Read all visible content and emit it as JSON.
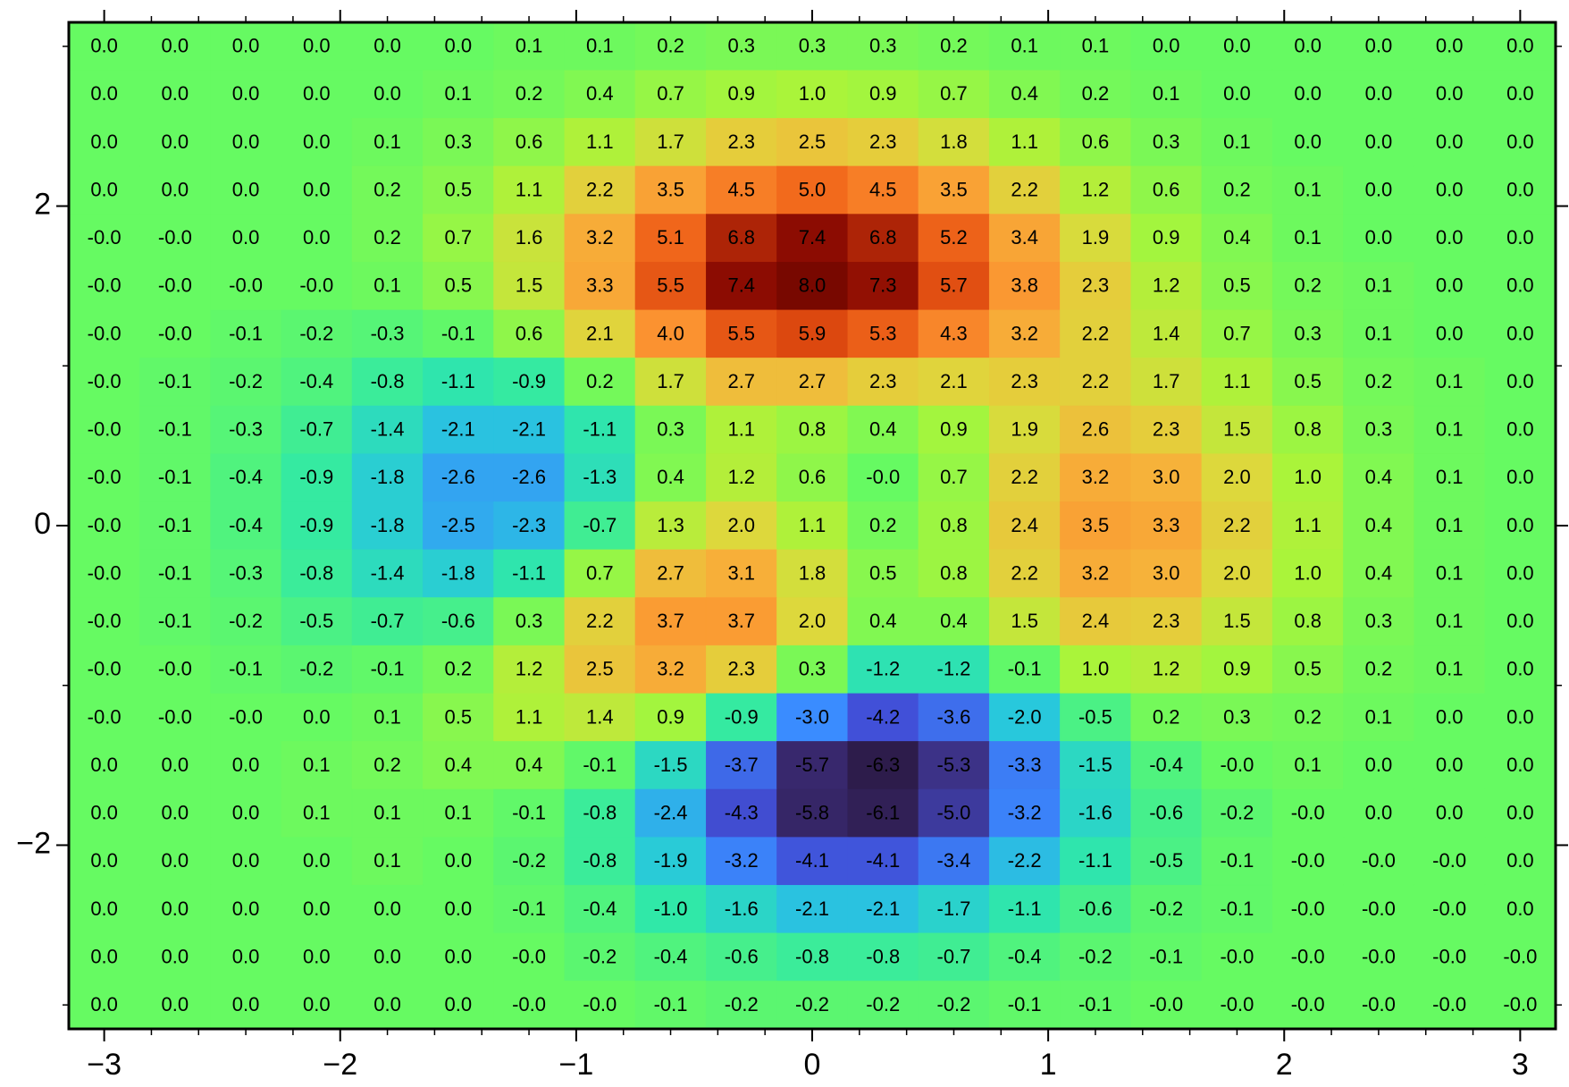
{
  "chart_data": {
    "type": "heatmap",
    "x": [
      -3.0,
      -2.7,
      -2.4,
      -2.1,
      -1.8,
      -1.5,
      -1.2,
      -0.9,
      -0.6,
      -0.3,
      0.0,
      0.3,
      0.6,
      0.9,
      1.2,
      1.5,
      1.8,
      2.1,
      2.4,
      2.7,
      3.0
    ],
    "y": [
      3.0,
      2.7,
      2.4,
      2.1,
      1.8,
      1.5,
      1.2,
      0.9,
      0.6,
      0.3,
      0.0,
      -0.3,
      -0.6,
      -0.9,
      -1.2,
      -1.5,
      -1.8,
      -2.1,
      -2.4,
      -2.7,
      -3.0
    ],
    "values": [
      [
        0.0,
        0.0,
        0.0,
        0.0,
        0.0,
        0.0,
        0.1,
        0.1,
        0.2,
        0.3,
        0.3,
        0.3,
        0.2,
        0.1,
        0.1,
        0.0,
        0.0,
        0.0,
        0.0,
        0.0,
        0.0
      ],
      [
        0.0,
        0.0,
        0.0,
        0.0,
        0.0,
        0.1,
        0.2,
        0.4,
        0.7,
        0.9,
        1.0,
        0.9,
        0.7,
        0.4,
        0.2,
        0.1,
        0.0,
        0.0,
        0.0,
        0.0,
        0.0
      ],
      [
        0.0,
        0.0,
        0.0,
        0.0,
        0.1,
        0.3,
        0.6,
        1.1,
        1.7,
        2.3,
        2.5,
        2.3,
        1.8,
        1.1,
        0.6,
        0.3,
        0.1,
        0.0,
        0.0,
        0.0,
        0.0
      ],
      [
        0.0,
        0.0,
        0.0,
        0.0,
        0.2,
        0.5,
        1.1,
        2.2,
        3.5,
        4.5,
        5.0,
        4.5,
        3.5,
        2.2,
        1.2,
        0.6,
        0.2,
        0.1,
        0.0,
        0.0,
        0.0
      ],
      [
        -0.0,
        -0.0,
        0.0,
        0.0,
        0.2,
        0.7,
        1.6,
        3.2,
        5.1,
        6.8,
        7.4,
        6.8,
        5.2,
        3.4,
        1.9,
        0.9,
        0.4,
        0.1,
        0.0,
        0.0,
        0.0
      ],
      [
        -0.0,
        -0.0,
        -0.0,
        -0.0,
        0.1,
        0.5,
        1.5,
        3.3,
        5.5,
        7.4,
        8.0,
        7.3,
        5.7,
        3.8,
        2.3,
        1.2,
        0.5,
        0.2,
        0.1,
        0.0,
        0.0
      ],
      [
        -0.0,
        -0.0,
        -0.1,
        -0.2,
        -0.3,
        -0.1,
        0.6,
        2.1,
        4.0,
        5.5,
        5.9,
        5.3,
        4.3,
        3.2,
        2.2,
        1.4,
        0.7,
        0.3,
        0.1,
        0.0,
        0.0
      ],
      [
        -0.0,
        -0.1,
        -0.2,
        -0.4,
        -0.8,
        -1.1,
        -0.9,
        0.2,
        1.7,
        2.7,
        2.7,
        2.3,
        2.1,
        2.3,
        2.2,
        1.7,
        1.1,
        0.5,
        0.2,
        0.1,
        0.0
      ],
      [
        -0.0,
        -0.1,
        -0.3,
        -0.7,
        -1.4,
        -2.1,
        -2.1,
        -1.1,
        0.3,
        1.1,
        0.8,
        0.4,
        0.9,
        1.9,
        2.6,
        2.3,
        1.5,
        0.8,
        0.3,
        0.1,
        0.0
      ],
      [
        -0.0,
        -0.1,
        -0.4,
        -0.9,
        -1.8,
        -2.6,
        -2.6,
        -1.3,
        0.4,
        1.2,
        0.6,
        -0.0,
        0.7,
        2.2,
        3.2,
        3.0,
        2.0,
        1.0,
        0.4,
        0.1,
        0.0
      ],
      [
        -0.0,
        -0.1,
        -0.4,
        -0.9,
        -1.8,
        -2.5,
        -2.3,
        -0.7,
        1.3,
        2.0,
        1.1,
        0.2,
        0.8,
        2.4,
        3.5,
        3.3,
        2.2,
        1.1,
        0.4,
        0.1,
        0.0
      ],
      [
        -0.0,
        -0.1,
        -0.3,
        -0.8,
        -1.4,
        -1.8,
        -1.1,
        0.7,
        2.7,
        3.1,
        1.8,
        0.5,
        0.8,
        2.2,
        3.2,
        3.0,
        2.0,
        1.0,
        0.4,
        0.1,
        0.0
      ],
      [
        -0.0,
        -0.1,
        -0.2,
        -0.5,
        -0.7,
        -0.6,
        0.3,
        2.2,
        3.7,
        3.7,
        2.0,
        0.4,
        0.4,
        1.5,
        2.4,
        2.3,
        1.5,
        0.8,
        0.3,
        0.1,
        0.0
      ],
      [
        -0.0,
        -0.0,
        -0.1,
        -0.2,
        -0.1,
        0.2,
        1.2,
        2.5,
        3.2,
        2.3,
        0.3,
        -1.2,
        -1.2,
        -0.1,
        1.0,
        1.2,
        0.9,
        0.5,
        0.2,
        0.1,
        0.0
      ],
      [
        -0.0,
        -0.0,
        -0.0,
        0.0,
        0.1,
        0.5,
        1.1,
        1.4,
        0.9,
        -0.9,
        -3.0,
        -4.2,
        -3.6,
        -2.0,
        -0.5,
        0.2,
        0.3,
        0.2,
        0.1,
        0.0,
        0.0
      ],
      [
        0.0,
        0.0,
        0.0,
        0.1,
        0.2,
        0.4,
        0.4,
        -0.1,
        -1.5,
        -3.7,
        -5.7,
        -6.3,
        -5.3,
        -3.3,
        -1.5,
        -0.4,
        -0.0,
        0.1,
        0.0,
        0.0,
        0.0
      ],
      [
        0.0,
        0.0,
        0.0,
        0.1,
        0.1,
        0.1,
        -0.1,
        -0.8,
        -2.4,
        -4.3,
        -5.8,
        -6.1,
        -5.0,
        -3.2,
        -1.6,
        -0.6,
        -0.2,
        -0.0,
        0.0,
        0.0,
        0.0
      ],
      [
        0.0,
        0.0,
        0.0,
        0.0,
        0.1,
        0.0,
        -0.2,
        -0.8,
        -1.9,
        -3.2,
        -4.1,
        -4.1,
        -3.4,
        -2.2,
        -1.1,
        -0.5,
        -0.1,
        -0.0,
        -0.0,
        -0.0,
        0.0
      ],
      [
        0.0,
        0.0,
        0.0,
        0.0,
        0.0,
        0.0,
        -0.1,
        -0.4,
        -1.0,
        -1.6,
        -2.1,
        -2.1,
        -1.7,
        -1.1,
        -0.6,
        -0.2,
        -0.1,
        -0.0,
        -0.0,
        -0.0,
        0.0
      ],
      [
        0.0,
        0.0,
        0.0,
        0.0,
        0.0,
        0.0,
        -0.0,
        -0.2,
        -0.4,
        -0.6,
        -0.8,
        -0.8,
        -0.7,
        -0.4,
        -0.2,
        -0.1,
        -0.0,
        -0.0,
        -0.0,
        -0.0,
        -0.0
      ],
      [
        0.0,
        0.0,
        0.0,
        0.0,
        0.0,
        0.0,
        -0.0,
        -0.0,
        -0.1,
        -0.2,
        -0.2,
        -0.2,
        -0.2,
        -0.1,
        -0.1,
        -0.0,
        -0.0,
        -0.0,
        -0.0,
        -0.0,
        -0.0
      ]
    ],
    "value_labels": [
      [
        "0.0",
        "0.0",
        "0.0",
        "0.0",
        "0.0",
        "0.0",
        "0.1",
        "0.1",
        "0.2",
        "0.3",
        "0.3",
        "0.3",
        "0.2",
        "0.1",
        "0.1",
        "0.0",
        "0.0",
        "0.0",
        "0.0",
        "0.0",
        "0.0"
      ],
      [
        "0.0",
        "0.0",
        "0.0",
        "0.0",
        "0.0",
        "0.1",
        "0.2",
        "0.4",
        "0.7",
        "0.9",
        "1.0",
        "0.9",
        "0.7",
        "0.4",
        "0.2",
        "0.1",
        "0.0",
        "0.0",
        "0.0",
        "0.0",
        "0.0"
      ],
      [
        "0.0",
        "0.0",
        "0.0",
        "0.0",
        "0.1",
        "0.3",
        "0.6",
        "1.1",
        "1.7",
        "2.3",
        "2.5",
        "2.3",
        "1.8",
        "1.1",
        "0.6",
        "0.3",
        "0.1",
        "0.0",
        "0.0",
        "0.0",
        "0.0"
      ],
      [
        "0.0",
        "0.0",
        "0.0",
        "0.0",
        "0.2",
        "0.5",
        "1.1",
        "2.2",
        "3.5",
        "4.5",
        "5.0",
        "4.5",
        "3.5",
        "2.2",
        "1.2",
        "0.6",
        "0.2",
        "0.1",
        "0.0",
        "0.0",
        "0.0"
      ],
      [
        "-0.0",
        "-0.0",
        "0.0",
        "0.0",
        "0.2",
        "0.7",
        "1.6",
        "3.2",
        "5.1",
        "6.8",
        "7.4",
        "6.8",
        "5.2",
        "3.4",
        "1.9",
        "0.9",
        "0.4",
        "0.1",
        "0.0",
        "0.0",
        "0.0"
      ],
      [
        "-0.0",
        "-0.0",
        "-0.0",
        "-0.0",
        "0.1",
        "0.5",
        "1.5",
        "3.3",
        "5.5",
        "7.4",
        "8.0",
        "7.3",
        "5.7",
        "3.8",
        "2.3",
        "1.2",
        "0.5",
        "0.2",
        "0.1",
        "0.0",
        "0.0"
      ],
      [
        "-0.0",
        "-0.0",
        "-0.1",
        "-0.2",
        "-0.3",
        "-0.1",
        "0.6",
        "2.1",
        "4.0",
        "5.5",
        "5.9",
        "5.3",
        "4.3",
        "3.2",
        "2.2",
        "1.4",
        "0.7",
        "0.3",
        "0.1",
        "0.0",
        "0.0"
      ],
      [
        "-0.0",
        "-0.1",
        "-0.2",
        "-0.4",
        "-0.8",
        "-1.1",
        "-0.9",
        "0.2",
        "1.7",
        "2.7",
        "2.7",
        "2.3",
        "2.1",
        "2.3",
        "2.2",
        "1.7",
        "1.1",
        "0.5",
        "0.2",
        "0.1",
        "0.0"
      ],
      [
        "-0.0",
        "-0.1",
        "-0.3",
        "-0.7",
        "-1.4",
        "-2.1",
        "-2.1",
        "-1.1",
        "0.3",
        "1.1",
        "0.8",
        "0.4",
        "0.9",
        "1.9",
        "2.6",
        "2.3",
        "1.5",
        "0.8",
        "0.3",
        "0.1",
        "0.0"
      ],
      [
        "-0.0",
        "-0.1",
        "-0.4",
        "-0.9",
        "-1.8",
        "-2.6",
        "-2.6",
        "-1.3",
        "0.4",
        "1.2",
        "0.6",
        "-0.0",
        "0.7",
        "2.2",
        "3.2",
        "3.0",
        "2.0",
        "1.0",
        "0.4",
        "0.1",
        "0.0"
      ],
      [
        "-0.0",
        "-0.1",
        "-0.4",
        "-0.9",
        "-1.8",
        "-2.5",
        "-2.3",
        "-0.7",
        "1.3",
        "2.0",
        "1.1",
        "0.2",
        "0.8",
        "2.4",
        "3.5",
        "3.3",
        "2.2",
        "1.1",
        "0.4",
        "0.1",
        "0.0"
      ],
      [
        "-0.0",
        "-0.1",
        "-0.3",
        "-0.8",
        "-1.4",
        "-1.8",
        "-1.1",
        "0.7",
        "2.7",
        "3.1",
        "1.8",
        "0.5",
        "0.8",
        "2.2",
        "3.2",
        "3.0",
        "2.0",
        "1.0",
        "0.4",
        "0.1",
        "0.0"
      ],
      [
        "-0.0",
        "-0.1",
        "-0.2",
        "-0.5",
        "-0.7",
        "-0.6",
        "0.3",
        "2.2",
        "3.7",
        "3.7",
        "2.0",
        "0.4",
        "0.4",
        "1.5",
        "2.4",
        "2.3",
        "1.5",
        "0.8",
        "0.3",
        "0.1",
        "0.0"
      ],
      [
        "-0.0",
        "-0.0",
        "-0.1",
        "-0.2",
        "-0.1",
        "0.2",
        "1.2",
        "2.5",
        "3.2",
        "2.3",
        "0.3",
        "-1.2",
        "-1.2",
        "-0.1",
        "1.0",
        "1.2",
        "0.9",
        "0.5",
        "0.2",
        "0.1",
        "0.0"
      ],
      [
        "-0.0",
        "-0.0",
        "-0.0",
        "0.0",
        "0.1",
        "0.5",
        "1.1",
        "1.4",
        "0.9",
        "-0.9",
        "-3.0",
        "-4.2",
        "-3.6",
        "-2.0",
        "-0.5",
        "0.2",
        "0.3",
        "0.2",
        "0.1",
        "0.0",
        "0.0"
      ],
      [
        "0.0",
        "0.0",
        "0.0",
        "0.1",
        "0.2",
        "0.4",
        "0.4",
        "-0.1",
        "-1.5",
        "-3.7",
        "-5.7",
        "-6.3",
        "-5.3",
        "-3.3",
        "-1.5",
        "-0.4",
        "-0.0",
        "0.1",
        "0.0",
        "0.0",
        "0.0"
      ],
      [
        "0.0",
        "0.0",
        "0.0",
        "0.1",
        "0.1",
        "0.1",
        "-0.1",
        "-0.8",
        "-2.4",
        "-4.3",
        "-5.8",
        "-6.1",
        "-5.0",
        "-3.2",
        "-1.6",
        "-0.6",
        "-0.2",
        "-0.0",
        "0.0",
        "0.0",
        "0.0"
      ],
      [
        "0.0",
        "0.0",
        "0.0",
        "0.0",
        "0.1",
        "0.0",
        "-0.2",
        "-0.8",
        "-1.9",
        "-3.2",
        "-4.1",
        "-4.1",
        "-3.4",
        "-2.2",
        "-1.1",
        "-0.5",
        "-0.1",
        "-0.0",
        "-0.0",
        "-0.0",
        "0.0"
      ],
      [
        "0.0",
        "0.0",
        "0.0",
        "0.0",
        "0.0",
        "0.0",
        "-0.1",
        "-0.4",
        "-1.0",
        "-1.6",
        "-2.1",
        "-2.1",
        "-1.7",
        "-1.1",
        "-0.6",
        "-0.2",
        "-0.1",
        "-0.0",
        "-0.0",
        "-0.0",
        "0.0"
      ],
      [
        "0.0",
        "0.0",
        "0.0",
        "0.0",
        "0.0",
        "0.0",
        "-0.0",
        "-0.2",
        "-0.4",
        "-0.6",
        "-0.8",
        "-0.8",
        "-0.7",
        "-0.4",
        "-0.2",
        "-0.1",
        "-0.0",
        "-0.0",
        "-0.0",
        "-0.0",
        "-0.0"
      ],
      [
        "0.0",
        "0.0",
        "0.0",
        "0.0",
        "0.0",
        "0.0",
        "-0.0",
        "-0.0",
        "-0.1",
        "-0.2",
        "-0.2",
        "-0.2",
        "-0.2",
        "-0.1",
        "-0.1",
        "-0.0",
        "-0.0",
        "-0.0",
        "-0.0",
        "-0.0",
        "-0.0"
      ]
    ],
    "colorscale": [
      {
        "value": -6.5,
        "color": "#2a1840"
      },
      {
        "value": -5.5,
        "color": "#3b2c78"
      },
      {
        "value": -4.2,
        "color": "#4150d8"
      },
      {
        "value": -3.0,
        "color": "#3a8cff"
      },
      {
        "value": -2.0,
        "color": "#28c8dc"
      },
      {
        "value": -1.0,
        "color": "#30e8a8"
      },
      {
        "value": 0.0,
        "color": "#66fa62"
      },
      {
        "value": 1.0,
        "color": "#aaf43a"
      },
      {
        "value": 2.0,
        "color": "#ddd83c"
      },
      {
        "value": 3.0,
        "color": "#f6b23a"
      },
      {
        "value": 4.0,
        "color": "#fb9230"
      },
      {
        "value": 5.0,
        "color": "#f26a1c"
      },
      {
        "value": 6.0,
        "color": "#d9440e"
      },
      {
        "value": 7.4,
        "color": "#8c0c02"
      },
      {
        "value": 8.0,
        "color": "#780800"
      }
    ],
    "xlim": [
      -3.15,
      3.15
    ],
    "ylim": [
      -3.15,
      3.15
    ],
    "xticks": [
      {
        "value": -3,
        "label": "−3"
      },
      {
        "value": -2,
        "label": "−2"
      },
      {
        "value": -1,
        "label": "−1"
      },
      0,
      1,
      2,
      3
    ],
    "yticks": [
      {
        "value": -2,
        "label": "−2"
      },
      0,
      2
    ],
    "xminorticks": [
      -2.8,
      -2.6,
      -2.4,
      -2.2,
      -1.8,
      -1.6,
      -1.4,
      -1.2,
      -0.8,
      -0.6,
      -0.4,
      -0.2,
      0.2,
      0.4,
      0.6,
      0.8,
      1.2,
      1.4,
      1.6,
      1.8,
      2.2,
      2.4,
      2.6,
      2.8
    ],
    "yminorticks": [
      -3,
      -1,
      1,
      3
    ]
  }
}
